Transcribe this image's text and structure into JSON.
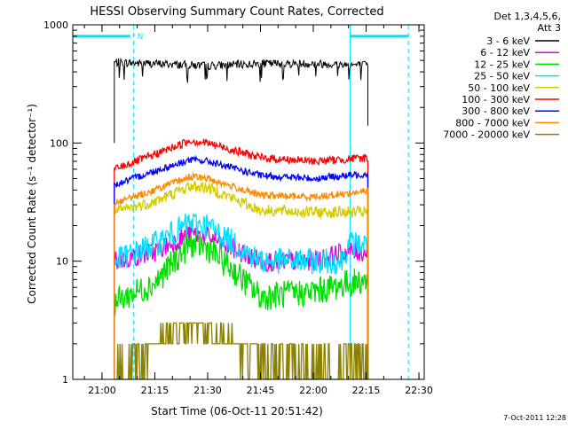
{
  "chart_data": {
    "type": "line",
    "title": "HESSI Observing Summary Count Rates, Corrected",
    "xlabel": "Start Time (06-Oct-11 20:51:42)",
    "ylabel": "Corrected Count Rate (s⁻¹ detector⁻¹)",
    "yscale": "log",
    "ylim": [
      1,
      1000
    ],
    "xlim": [
      "20:51:42",
      "22:31:30"
    ],
    "x_ticks": [
      "21:00",
      "21:15",
      "21:30",
      "21:45",
      "22:00",
      "22:15",
      "22:30"
    ],
    "y_ticks": [
      "1",
      "10",
      "100",
      "1000"
    ],
    "legend_header": [
      "Det 1,3,4,5,6,",
      "Att 3"
    ],
    "legend_position": "right",
    "footer_timestamp": "7-Oct-2011 12:28",
    "grid": false,
    "annotations": {
      "attenuator_marker_label": "N",
      "shaded_time_markers": [
        "21:09:00",
        "22:10:30",
        "22:27:00"
      ],
      "cyan_bars": [
        {
          "start": "20:51:42",
          "end": "21:08:00",
          "y": 800
        },
        {
          "start": "22:10:30",
          "end": "22:27:00",
          "y": 800
        }
      ],
      "vertical_lines": [
        "22:10:30"
      ]
    },
    "x_data_start": "21:03:30",
    "x_data_end": "22:15:30",
    "series": [
      {
        "name": "3 - 6 keV",
        "color": "#000000",
        "points": [
          [
            "21:03:30",
            480
          ],
          [
            "21:15",
            470
          ],
          [
            "21:30",
            450
          ],
          [
            "21:45",
            470
          ],
          [
            "22:00",
            470
          ],
          [
            "22:15:30",
            455
          ]
        ]
      },
      {
        "name": "6 - 12 keV",
        "color": "#e000e0",
        "points": [
          [
            "21:03:30",
            10
          ],
          [
            "21:15",
            12
          ],
          [
            "21:25",
            17
          ],
          [
            "21:30",
            16
          ],
          [
            "21:45",
            10
          ],
          [
            "22:00",
            10
          ],
          [
            "22:10",
            12
          ],
          [
            "22:15:30",
            12
          ]
        ]
      },
      {
        "name": "12 - 25 keV",
        "color": "#00e000",
        "points": [
          [
            "21:03:30",
            4.5
          ],
          [
            "21:15",
            6.5
          ],
          [
            "21:25",
            14
          ],
          [
            "21:30",
            13
          ],
          [
            "21:38",
            8
          ],
          [
            "21:45",
            5
          ],
          [
            "22:00",
            5.5
          ],
          [
            "22:10",
            6.5
          ],
          [
            "22:15:30",
            7
          ]
        ]
      },
      {
        "name": "25 - 50 keV",
        "color": "#00e0ff",
        "points": [
          [
            "21:03:30",
            10
          ],
          [
            "21:15",
            14
          ],
          [
            "21:25",
            21
          ],
          [
            "21:30",
            20
          ],
          [
            "21:45",
            10
          ],
          [
            "22:00",
            10
          ],
          [
            "22:08",
            10
          ],
          [
            "22:10",
            14
          ],
          [
            "22:15:30",
            14
          ]
        ]
      },
      {
        "name": "50 - 100 keV",
        "color": "#d4cc00",
        "points": [
          [
            "21:03:30",
            26
          ],
          [
            "21:15",
            32
          ],
          [
            "21:25",
            43
          ],
          [
            "21:30",
            42
          ],
          [
            "21:45",
            27
          ],
          [
            "22:00",
            26
          ],
          [
            "22:15:30",
            26
          ]
        ]
      },
      {
        "name": "100 - 300 keV",
        "color": "#ff0000",
        "points": [
          [
            "21:03:30",
            60
          ],
          [
            "21:15",
            80
          ],
          [
            "21:25",
            105
          ],
          [
            "21:30",
            100
          ],
          [
            "21:45",
            75
          ],
          [
            "22:00",
            70
          ],
          [
            "22:15:30",
            75
          ]
        ]
      },
      {
        "name": "300 - 800 keV",
        "color": "#0000ff",
        "points": [
          [
            "21:03:30",
            44
          ],
          [
            "21:15",
            58
          ],
          [
            "21:25",
            72
          ],
          [
            "21:30",
            70
          ],
          [
            "21:45",
            53
          ],
          [
            "22:00",
            50
          ],
          [
            "22:15:30",
            55
          ]
        ]
      },
      {
        "name": "800 - 7000 keV",
        "color": "#ff8800",
        "points": [
          [
            "21:03:30",
            31
          ],
          [
            "21:15",
            40
          ],
          [
            "21:25",
            52
          ],
          [
            "21:30",
            50
          ],
          [
            "21:45",
            36
          ],
          [
            "22:00",
            35
          ],
          [
            "22:15:30",
            39
          ]
        ]
      },
      {
        "name": "7000 - 20000 keV",
        "color": "#8b8000",
        "points": [
          [
            "21:03:30",
            1
          ],
          [
            "21:12",
            1.5
          ],
          [
            "21:20",
            2.5
          ],
          [
            "21:28",
            2.8
          ],
          [
            "21:36",
            2.0
          ],
          [
            "21:45",
            1.5
          ],
          [
            "22:00",
            1.2
          ],
          [
            "22:15:30",
            1.3
          ]
        ]
      }
    ]
  }
}
